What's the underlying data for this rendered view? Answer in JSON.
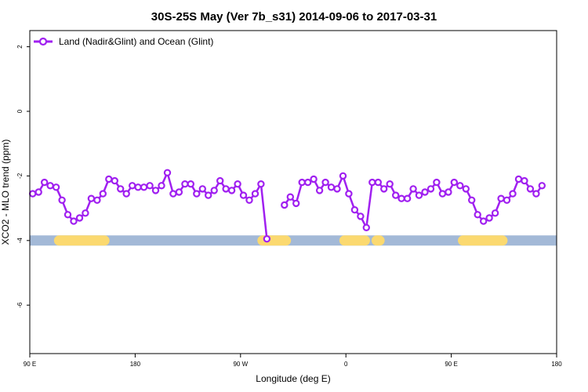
{
  "chart_data": {
    "type": "line",
    "title": "30S-25S May (Ver 7b_s31)   2014-09-06 to 2017-03-31",
    "xlabel": "Longitude (deg E)",
    "ylabel": "XCO2 - MLO trend (ppm)",
    "xlim": [
      90,
      450
    ],
    "ylim": [
      -7.5,
      2.5
    ],
    "x_ticks": [
      {
        "value": 90,
        "label": "90 E"
      },
      {
        "value": 162,
        "label": "180"
      },
      {
        "value": 234,
        "label": "90 W"
      },
      {
        "value": 306,
        "label": "0"
      },
      {
        "value": 378,
        "label": "90 E"
      },
      {
        "value": 450,
        "label": "180"
      }
    ],
    "y_ticks": [
      {
        "value": 2,
        "label": "2"
      },
      {
        "value": 0,
        "label": "0"
      },
      {
        "value": -2,
        "label": "-2"
      },
      {
        "value": -4,
        "label": "-4"
      },
      {
        "value": -6,
        "label": "-6"
      }
    ],
    "legend": {
      "position": "top-left"
    },
    "series": [
      {
        "name": "Land (Nadir&Glint) and Ocean (Glint)",
        "color": "#a020f0",
        "segments": [
          [
            [
              92,
              -2.55
            ],
            [
              96,
              -2.5
            ],
            [
              100,
              -2.2
            ],
            [
              104,
              -2.3
            ],
            [
              108,
              -2.35
            ],
            [
              112,
              -2.75
            ],
            [
              116,
              -3.2
            ],
            [
              120,
              -3.4
            ],
            [
              124,
              -3.3
            ],
            [
              128,
              -3.15
            ],
            [
              132,
              -2.7
            ],
            [
              136,
              -2.75
            ],
            [
              140,
              -2.55
            ],
            [
              144,
              -2.1
            ],
            [
              148,
              -2.15
            ],
            [
              152,
              -2.4
            ],
            [
              156,
              -2.55
            ],
            [
              160,
              -2.3
            ],
            [
              164,
              -2.35
            ],
            [
              168,
              -2.35
            ],
            [
              172,
              -2.3
            ],
            [
              176,
              -2.45
            ],
            [
              180,
              -2.3
            ],
            [
              184,
              -1.9
            ],
            [
              188,
              -2.55
            ],
            [
              192,
              -2.5
            ],
            [
              196,
              -2.25
            ],
            [
              200,
              -2.25
            ],
            [
              204,
              -2.55
            ],
            [
              208,
              -2.4
            ],
            [
              212,
              -2.6
            ],
            [
              216,
              -2.45
            ],
            [
              220,
              -2.15
            ],
            [
              224,
              -2.4
            ],
            [
              228,
              -2.45
            ],
            [
              232,
              -2.25
            ],
            [
              236,
              -2.6
            ],
            [
              240,
              -2.75
            ],
            [
              244,
              -2.55
            ],
            [
              248,
              -2.25
            ],
            [
              252,
              -3.95
            ]
          ],
          [
            [
              264,
              -2.9
            ],
            [
              268,
              -2.65
            ],
            [
              272,
              -2.85
            ],
            [
              276,
              -2.2
            ],
            [
              280,
              -2.2
            ],
            [
              284,
              -2.1
            ],
            [
              288,
              -2.45
            ],
            [
              292,
              -2.2
            ],
            [
              296,
              -2.35
            ],
            [
              300,
              -2.4
            ],
            [
              304,
              -2.0
            ],
            [
              308,
              -2.55
            ],
            [
              312,
              -3.05
            ],
            [
              316,
              -3.25
            ],
            [
              320,
              -3.6
            ],
            [
              324,
              -2.2
            ],
            [
              328,
              -2.2
            ],
            [
              332,
              -2.4
            ],
            [
              336,
              -2.25
            ],
            [
              340,
              -2.6
            ],
            [
              344,
              -2.7
            ],
            [
              348,
              -2.7
            ],
            [
              352,
              -2.4
            ],
            [
              356,
              -2.6
            ],
            [
              360,
              -2.5
            ],
            [
              364,
              -2.4
            ],
            [
              368,
              -2.2
            ],
            [
              372,
              -2.55
            ],
            [
              376,
              -2.5
            ],
            [
              380,
              -2.2
            ],
            [
              384,
              -2.3
            ],
            [
              388,
              -2.4
            ],
            [
              392,
              -2.75
            ],
            [
              396,
              -3.2
            ],
            [
              400,
              -3.4
            ],
            [
              404,
              -3.3
            ],
            [
              408,
              -3.15
            ],
            [
              412,
              -2.7
            ],
            [
              416,
              -2.75
            ],
            [
              420,
              -2.55
            ],
            [
              424,
              -2.1
            ],
            [
              428,
              -2.15
            ],
            [
              432,
              -2.4
            ],
            [
              436,
              -2.55
            ],
            [
              440,
              -2.3
            ]
          ]
        ]
      }
    ],
    "surface_bar": {
      "y": -4,
      "ocean_color": "#a3b9d7",
      "land_color": "#fbd970",
      "land_ranges": [
        [
          110,
          141
        ],
        [
          249,
          265
        ],
        [
          305,
          319
        ],
        [
          327,
          329
        ],
        [
          386,
          413
        ]
      ]
    }
  }
}
